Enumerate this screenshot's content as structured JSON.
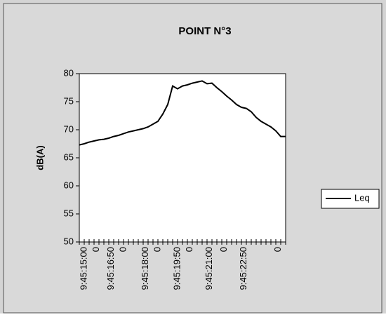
{
  "chart_data": {
    "type": "line",
    "title": "POINT N°3",
    "y_label": "dB(A)",
    "x": [
      0,
      2,
      4,
      6,
      8,
      10,
      12,
      14,
      16,
      18,
      20,
      22,
      24,
      26,
      28,
      30,
      32,
      34,
      36,
      38,
      40,
      42,
      44,
      46,
      48,
      50,
      52,
      54,
      56,
      58,
      60,
      62,
      64,
      66,
      68,
      70,
      72,
      74,
      76,
      78,
      80,
      82,
      84
    ],
    "series": [
      {
        "name": "Leq",
        "color": "#000000",
        "values": [
          67.3,
          67.5,
          67.8,
          68,
          68.2,
          68.3,
          68.5,
          68.8,
          69,
          69.3,
          69.6,
          69.8,
          70,
          70.2,
          70.5,
          71,
          71.5,
          72.8,
          74.5,
          77.8,
          77.3,
          77.8,
          78,
          78.3,
          78.5,
          78.7,
          78.2,
          78.3,
          77.5,
          76.8,
          76,
          75.3,
          74.5,
          74,
          73.8,
          73.2,
          72.2,
          71.5,
          71,
          70.5,
          69.8,
          68.8,
          68.8
        ]
      }
    ],
    "xlim": [
      0,
      84
    ],
    "xticks": [
      {
        "value": 2,
        "label": "9:45:15:00"
      },
      {
        "value": 7,
        "label": "0"
      },
      {
        "value": 13,
        "label": "9:45:16:50"
      },
      {
        "value": 18,
        "label": "0"
      },
      {
        "value": 27,
        "label": "9:45:18:00"
      },
      {
        "value": 32,
        "label": "0"
      },
      {
        "value": 40,
        "label": "9:45:19:50"
      },
      {
        "value": 45,
        "label": "0"
      },
      {
        "value": 53,
        "label": "9:45:21:00"
      },
      {
        "value": 59,
        "label": "0"
      },
      {
        "value": 67,
        "label": "9:45:22:50"
      },
      {
        "value": 81,
        "label": "0"
      }
    ],
    "ylim": [
      50,
      80
    ],
    "yticks": [
      50,
      55,
      60,
      65,
      70,
      75,
      80
    ],
    "grid": false,
    "legend": "right"
  }
}
